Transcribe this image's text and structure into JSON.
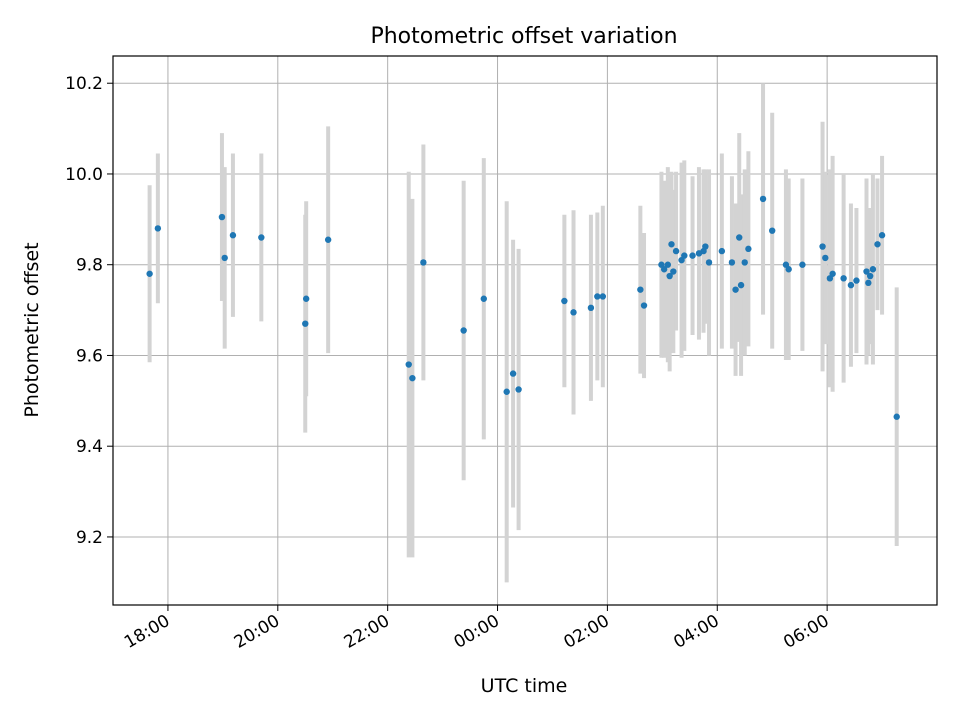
{
  "chart_data": {
    "type": "scatter",
    "title": "Photometric offset variation",
    "xlabel": "UTC time",
    "ylabel": "Photometric offset",
    "x_ticks": [
      "18:00",
      "20:00",
      "22:00",
      "00:00",
      "02:00",
      "04:00",
      "06:00"
    ],
    "y_ticks": [
      "9.2",
      "9.4",
      "9.6",
      "9.8",
      "10.0",
      "10.2"
    ],
    "xlim": [
      "17:00",
      "08:00"
    ],
    "ylim": [
      9.05,
      10.26
    ],
    "grid": true,
    "legend": "none",
    "colors": {
      "points": "#1f77b4",
      "errorbars": "#d3d3d3",
      "grid": "#b0b0b0"
    },
    "series": [
      {
        "points": [
          {
            "x": "17:40",
            "y": 9.78,
            "err": 0.195
          },
          {
            "x": "17:49",
            "y": 9.88,
            "err": 0.165
          },
          {
            "x": "18:59",
            "y": 9.905,
            "err": 0.185
          },
          {
            "x": "19:02",
            "y": 9.815,
            "err": 0.2
          },
          {
            "x": "19:11",
            "y": 9.865,
            "err": 0.18
          },
          {
            "x": "19:42",
            "y": 9.86,
            "err": 0.185
          },
          {
            "x": "20:30",
            "y": 9.67,
            "err": 0.24
          },
          {
            "x": "20:31",
            "y": 9.725,
            "err": 0.215
          },
          {
            "x": "20:55",
            "y": 9.855,
            "err": 0.25
          },
          {
            "x": "22:23",
            "y": 9.58,
            "err": 0.425
          },
          {
            "x": "22:27",
            "y": 9.55,
            "err": 0.395
          },
          {
            "x": "22:39",
            "y": 9.805,
            "err": 0.26
          },
          {
            "x": "23:23",
            "y": 9.655,
            "err": 0.33
          },
          {
            "x": "23:45",
            "y": 9.725,
            "err": 0.31
          },
          {
            "x": "00:10",
            "y": 9.52,
            "err": 0.42
          },
          {
            "x": "00:17",
            "y": 9.56,
            "err": 0.295
          },
          {
            "x": "00:23",
            "y": 9.525,
            "err": 0.31
          },
          {
            "x": "01:13",
            "y": 9.72,
            "err": 0.19
          },
          {
            "x": "01:23",
            "y": 9.695,
            "err": 0.225
          },
          {
            "x": "01:42",
            "y": 9.705,
            "err": 0.205
          },
          {
            "x": "01:49",
            "y": 9.73,
            "err": 0.185
          },
          {
            "x": "01:55",
            "y": 9.73,
            "err": 0.2
          },
          {
            "x": "02:36",
            "y": 9.745,
            "err": 0.185
          },
          {
            "x": "02:40",
            "y": 9.71,
            "err": 0.16
          },
          {
            "x": "02:59",
            "y": 9.8,
            "err": 0.205
          },
          {
            "x": "03:02",
            "y": 9.79,
            "err": 0.195
          },
          {
            "x": "03:06",
            "y": 9.8,
            "err": 0.215
          },
          {
            "x": "03:08",
            "y": 9.775,
            "err": 0.21
          },
          {
            "x": "03:10",
            "y": 9.845,
            "err": 0.16
          },
          {
            "x": "03:12",
            "y": 9.785,
            "err": 0.18
          },
          {
            "x": "03:15",
            "y": 9.83,
            "err": 0.175
          },
          {
            "x": "03:21",
            "y": 9.81,
            "err": 0.215
          },
          {
            "x": "03:24",
            "y": 9.82,
            "err": 0.21
          },
          {
            "x": "03:33",
            "y": 9.82,
            "err": 0.175
          },
          {
            "x": "03:40",
            "y": 9.825,
            "err": 0.19
          },
          {
            "x": "03:45",
            "y": 9.83,
            "err": 0.18
          },
          {
            "x": "03:47",
            "y": 9.84,
            "err": 0.17
          },
          {
            "x": "03:51",
            "y": 9.805,
            "err": 0.205
          },
          {
            "x": "04:05",
            "y": 9.83,
            "err": 0.215
          },
          {
            "x": "04:16",
            "y": 9.805,
            "err": 0.19
          },
          {
            "x": "04:20",
            "y": 9.745,
            "err": 0.19
          },
          {
            "x": "04:24",
            "y": 9.86,
            "err": 0.23
          },
          {
            "x": "04:26",
            "y": 9.755,
            "err": 0.2
          },
          {
            "x": "04:30",
            "y": 9.805,
            "err": 0.205
          },
          {
            "x": "04:34",
            "y": 9.835,
            "err": 0.215
          },
          {
            "x": "04:50",
            "y": 9.945,
            "err": 0.255
          },
          {
            "x": "05:00",
            "y": 9.875,
            "err": 0.26
          },
          {
            "x": "05:15",
            "y": 9.8,
            "err": 0.21
          },
          {
            "x": "05:18",
            "y": 9.79,
            "err": 0.2
          },
          {
            "x": "05:33",
            "y": 9.8,
            "err": 0.19
          },
          {
            "x": "05:55",
            "y": 9.84,
            "err": 0.275
          },
          {
            "x": "05:58",
            "y": 9.815,
            "err": 0.19
          },
          {
            "x": "06:03",
            "y": 9.77,
            "err": 0.24
          },
          {
            "x": "06:06",
            "y": 9.78,
            "err": 0.26
          },
          {
            "x": "06:18",
            "y": 9.77,
            "err": 0.23
          },
          {
            "x": "06:26",
            "y": 9.755,
            "err": 0.18
          },
          {
            "x": "06:32",
            "y": 9.765,
            "err": 0.16
          },
          {
            "x": "06:43",
            "y": 9.785,
            "err": 0.205
          },
          {
            "x": "06:45",
            "y": 9.76,
            "err": 0.16
          },
          {
            "x": "06:47",
            "y": 9.775,
            "err": 0.15
          },
          {
            "x": "06:50",
            "y": 9.79,
            "err": 0.21
          },
          {
            "x": "06:55",
            "y": 9.845,
            "err": 0.145
          },
          {
            "x": "07:00",
            "y": 9.865,
            "err": 0.175
          },
          {
            "x": "07:16",
            "y": 9.465,
            "err": 0.285
          }
        ]
      }
    ]
  }
}
